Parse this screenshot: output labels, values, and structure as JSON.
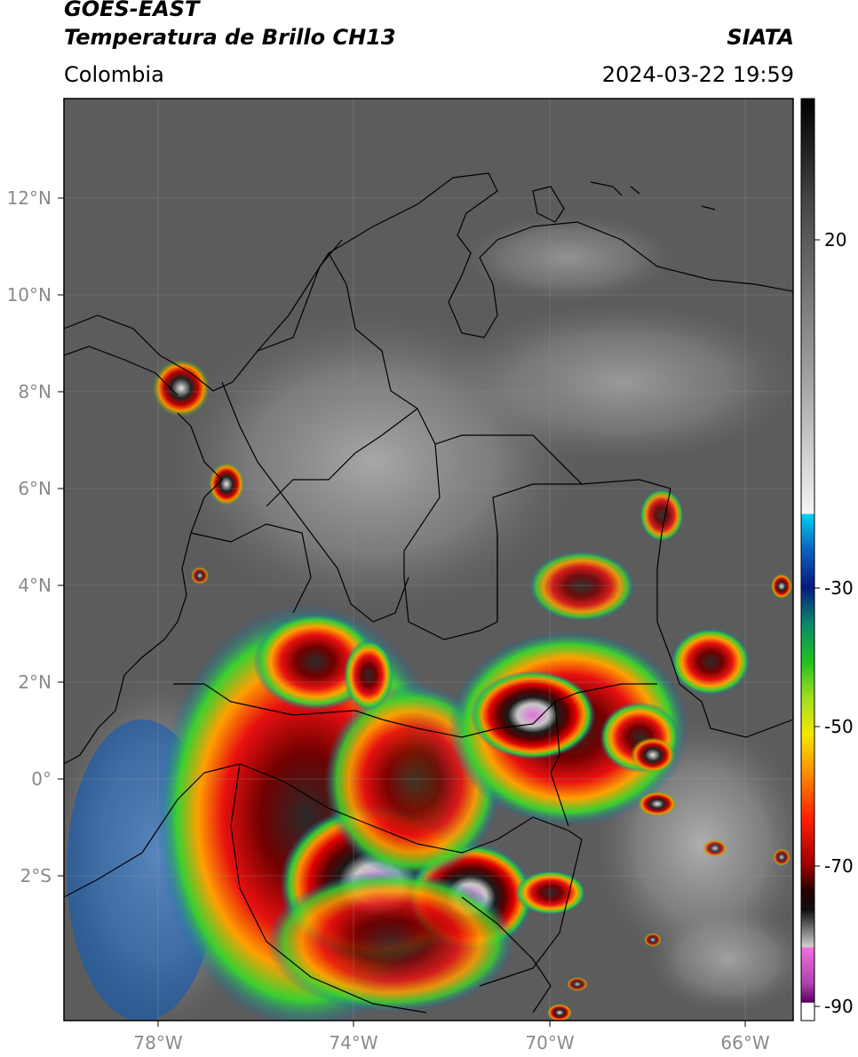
{
  "header": {
    "satellite": "GOES-EAST",
    "product": "Temperatura de Brillo CH13",
    "region": "Colombia",
    "organization": "SIATA",
    "datetime": "2024-03-22 19:59"
  },
  "map": {
    "lon_range": [
      -80,
      -65
    ],
    "lat_range": [
      -5,
      14
    ],
    "lon_ticks": [
      "78°W",
      "74°W",
      "70°W",
      "66°W"
    ],
    "lat_ticks": [
      "12°N",
      "10°N",
      "8°N",
      "6°N",
      "4°N",
      "2°N",
      "0°",
      "2°S"
    ],
    "gridlines": true
  },
  "colorbar": {
    "ticks": [
      "20",
      "-30",
      "-50",
      "-70",
      "-90"
    ],
    "colors": {
      "warm_gray": "#5a5a5a",
      "cyan": "#00c8e6",
      "blue": "#0a2a9a",
      "green": "#22c41e",
      "yellow": "#f2e400",
      "orange": "#ff8800",
      "red": "#d80000",
      "dark_red": "#3a0000",
      "magenta": "#d070d0",
      "purple": "#6a006a"
    }
  }
}
